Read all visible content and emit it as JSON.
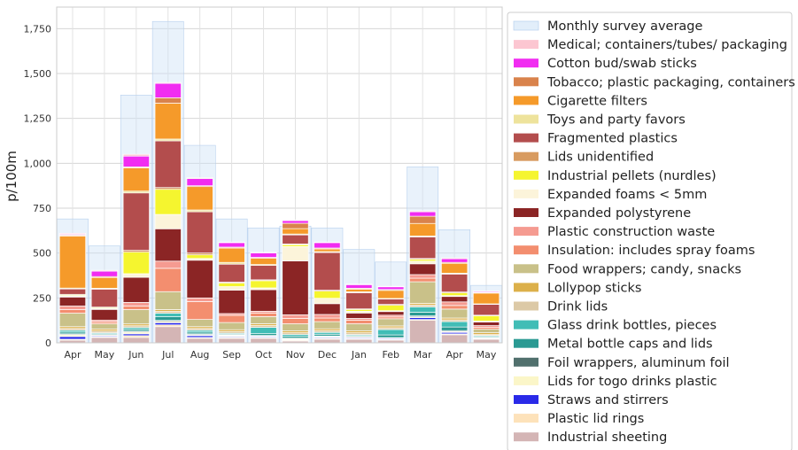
{
  "chart_data": {
    "type": "bar",
    "stacked": true,
    "categories": [
      "Apr",
      "May",
      "Jun",
      "Jul",
      "Aug",
      "Sep",
      "Oct",
      "Nov",
      "Dec",
      "Jan",
      "Feb",
      "Mar",
      "Apr",
      "May"
    ],
    "ylabel": "p/100m",
    "xlabel": "",
    "title": "",
    "ylim": [
      0,
      1870
    ],
    "yticks": [
      0,
      250,
      500,
      750,
      1000,
      1250,
      1500,
      1750
    ],
    "grid": true,
    "legend_position": "right",
    "monthly_average": {
      "name": "Monthly survey average",
      "color": "#cfe2f7",
      "values": [
        690,
        540,
        1380,
        1790,
        1100,
        690,
        640,
        650,
        640,
        520,
        450,
        980,
        630,
        320
      ]
    },
    "series": [
      {
        "name": "Industrial sheeting",
        "color": "#d4b5b5",
        "values": [
          15,
          30,
          30,
          90,
          25,
          25,
          25,
          10,
          20,
          20,
          15,
          125,
          45,
          20
        ]
      },
      {
        "name": "Plastic lid rings",
        "color": "#fde2ba",
        "values": [
          5,
          3,
          10,
          10,
          5,
          5,
          5,
          5,
          5,
          3,
          3,
          5,
          5,
          3
        ]
      },
      {
        "name": "Straws and stirrers",
        "color": "#2a2ae8",
        "values": [
          15,
          5,
          10,
          12,
          10,
          5,
          5,
          3,
          5,
          5,
          5,
          10,
          8,
          3
        ]
      },
      {
        "name": "Lids for togo drinks plastic",
        "color": "#fbf6c8",
        "values": [
          10,
          5,
          10,
          8,
          5,
          5,
          3,
          5,
          5,
          5,
          3,
          5,
          5,
          3
        ]
      },
      {
        "name": "Foil wrappers, aluminum foil",
        "color": "#51706d",
        "values": [
          5,
          3,
          5,
          5,
          5,
          3,
          3,
          3,
          3,
          3,
          3,
          5,
          5,
          2
        ]
      },
      {
        "name": "Metal bottle caps and lids",
        "color": "#2a9a93",
        "values": [
          10,
          5,
          10,
          20,
          10,
          5,
          10,
          10,
          10,
          5,
          15,
          20,
          20,
          5
        ]
      },
      {
        "name": "Glass drink bottles, pieces",
        "color": "#41bdb6",
        "values": [
          10,
          5,
          10,
          20,
          10,
          5,
          35,
          10,
          10,
          5,
          30,
          30,
          30,
          5
        ]
      },
      {
        "name": "Drink lids",
        "color": "#dcc9a6",
        "values": [
          10,
          10,
          10,
          10,
          10,
          10,
          10,
          10,
          10,
          10,
          10,
          10,
          10,
          5
        ]
      },
      {
        "name": "Lollypop sticks",
        "color": "#dcb04a",
        "values": [
          10,
          10,
          10,
          10,
          10,
          10,
          10,
          10,
          10,
          10,
          10,
          10,
          10,
          10
        ]
      },
      {
        "name": "Food wrappers; candy, snacks",
        "color": "#c9c189",
        "values": [
          75,
          30,
          80,
          100,
          40,
          40,
          40,
          40,
          40,
          40,
          40,
          120,
          50,
          20
        ]
      },
      {
        "name": "Insulation: includes spray foams",
        "color": "#f38e6f",
        "values": [
          20,
          10,
          20,
          130,
          100,
          40,
          20,
          30,
          20,
          20,
          10,
          20,
          20,
          10
        ]
      },
      {
        "name": "Plastic construction waste",
        "color": "#f59b91",
        "values": [
          20,
          10,
          20,
          40,
          20,
          10,
          10,
          20,
          20,
          10,
          10,
          20,
          20,
          10
        ]
      },
      {
        "name": "Expanded polystyrene",
        "color": "#8b2525",
        "values": [
          50,
          60,
          140,
          180,
          210,
          130,
          120,
          300,
          60,
          30,
          20,
          60,
          30,
          20
        ]
      },
      {
        "name": "Expanded foams < 5mm",
        "color": "#fcf4da",
        "values": [
          5,
          5,
          20,
          80,
          10,
          20,
          10,
          80,
          30,
          10,
          5,
          15,
          5,
          5
        ]
      },
      {
        "name": "Industrial pellets (nurdles)",
        "color": "#f5f52f",
        "values": [
          5,
          5,
          120,
          140,
          20,
          20,
          40,
          10,
          40,
          10,
          30,
          10,
          15,
          30
        ]
      },
      {
        "name": "Lids unidentified",
        "color": "#d89b60",
        "values": [
          5,
          3,
          10,
          10,
          10,
          5,
          5,
          5,
          5,
          3,
          5,
          5,
          5,
          3
        ]
      },
      {
        "name": "Fragmented plastics",
        "color": "#b34d4d",
        "values": [
          30,
          100,
          320,
          260,
          230,
          100,
          80,
          50,
          210,
          90,
          30,
          120,
          100,
          60
        ]
      },
      {
        "name": "Toys and party favors",
        "color": "#eee39c",
        "values": [
          5,
          5,
          10,
          10,
          10,
          10,
          5,
          5,
          5,
          5,
          3,
          5,
          5,
          3
        ]
      },
      {
        "name": "Cigarette filters",
        "color": "#f59a2a",
        "values": [
          290,
          60,
          130,
          200,
          130,
          80,
          35,
          30,
          15,
          15,
          45,
          70,
          55,
          60
        ]
      },
      {
        "name": "Tobacco; plastic packaging, containers",
        "color": "#d9834c",
        "values": [
          5,
          5,
          5,
          30,
          5,
          5,
          5,
          30,
          5,
          5,
          5,
          40,
          5,
          3
        ]
      },
      {
        "name": "Cotton bud/swab sticks",
        "color": "#f12cf1",
        "values": [
          5,
          30,
          60,
          80,
          40,
          25,
          25,
          15,
          30,
          20,
          15,
          25,
          20,
          5
        ]
      },
      {
        "name": "Medical; containers/tubes/ packaging",
        "color": "#fcc6d1",
        "values": [
          5,
          5,
          10,
          5,
          5,
          3,
          3,
          3,
          3,
          3,
          3,
          5,
          5,
          3
        ]
      }
    ]
  }
}
